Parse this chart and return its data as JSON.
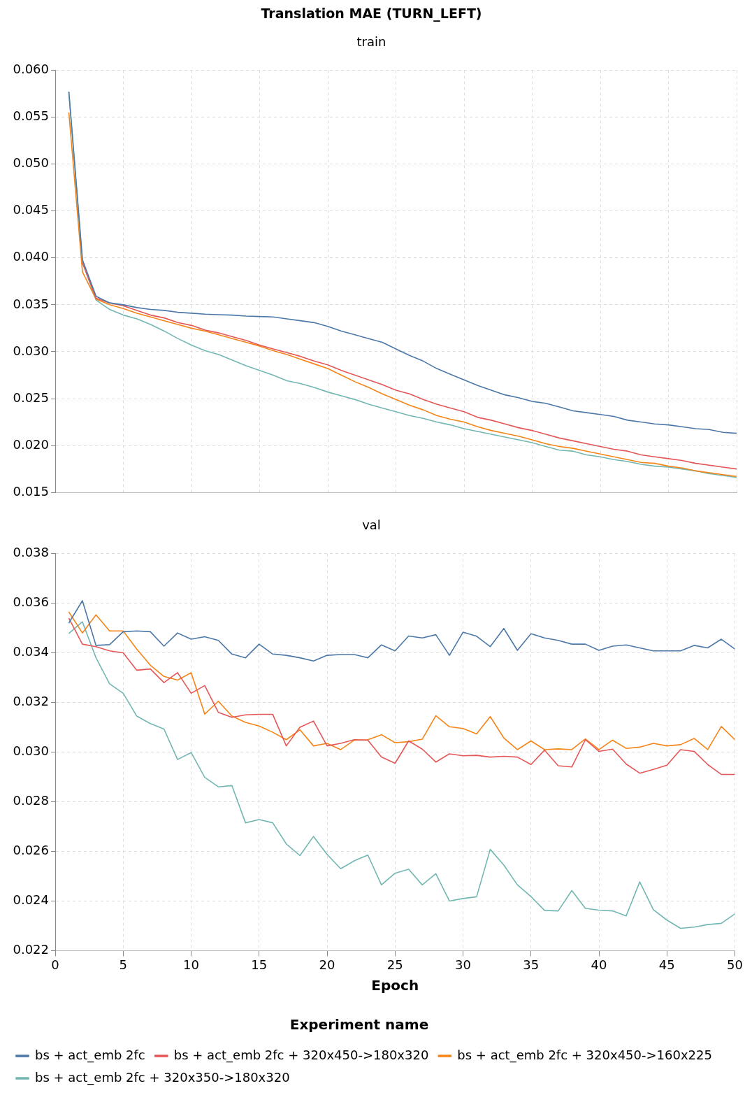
{
  "chart_data": [
    {
      "type": "line",
      "title": "Translation MAE (TURN_LEFT)",
      "subtitle": "train",
      "x": [
        1,
        2,
        3,
        4,
        5,
        6,
        7,
        8,
        9,
        10,
        11,
        12,
        13,
        14,
        15,
        16,
        17,
        18,
        19,
        20,
        21,
        22,
        23,
        24,
        25,
        26,
        27,
        28,
        29,
        30,
        31,
        32,
        33,
        34,
        35,
        36,
        37,
        38,
        39,
        40,
        41,
        42,
        43,
        44,
        45,
        46,
        47,
        48,
        49,
        50
      ],
      "series": [
        {
          "color": "#4c78a8",
          "values": [
            0.0577,
            0.0398,
            0.0359,
            0.0352,
            0.035,
            0.0347,
            0.0345,
            0.0344,
            0.0342,
            0.0341,
            0.034,
            0.03395,
            0.0339,
            0.0338,
            0.03375,
            0.0337,
            0.0335,
            0.0333,
            0.0331,
            0.0327,
            0.0322,
            0.0318,
            0.0314,
            0.031,
            0.0303,
            0.0296,
            0.029,
            0.0282,
            0.0276,
            0.027,
            0.0264,
            0.0259,
            0.0254,
            0.0251,
            0.0247,
            0.0245,
            0.0241,
            0.0237,
            0.0235,
            0.0233,
            0.0231,
            0.0227,
            0.0225,
            0.0223,
            0.0222,
            0.022,
            0.0218,
            0.0217,
            0.0214,
            0.0213
          ]
        },
        {
          "color": "#e45756",
          "values": [
            null,
            0.0395,
            0.0357,
            0.0352,
            0.0349,
            0.0344,
            0.0339,
            0.0336,
            0.0331,
            0.0328,
            0.0323,
            0.032,
            0.0316,
            0.0312,
            0.0307,
            0.0303,
            0.0299,
            0.0295,
            0.029,
            0.0286,
            0.028,
            0.0275,
            0.027,
            0.0265,
            0.0259,
            0.0255,
            0.0249,
            0.0244,
            0.024,
            0.0236,
            0.023,
            0.0227,
            0.0223,
            0.0219,
            0.0216,
            0.0212,
            0.0208,
            0.0205,
            0.0202,
            0.0199,
            0.0196,
            0.0194,
            0.019,
            0.0188,
            0.0186,
            0.0184,
            0.0181,
            0.0179,
            0.0177,
            0.0175
          ]
        },
        {
          "color": "#f58518",
          "values": [
            0.0555,
            0.0385,
            0.0356,
            0.035,
            0.0346,
            0.0341,
            0.0337,
            0.0333,
            0.0329,
            0.0325,
            0.0322,
            0.0318,
            0.0314,
            0.031,
            0.0306,
            0.0301,
            0.0297,
            0.0292,
            0.0287,
            0.0282,
            0.0275,
            0.0268,
            0.0262,
            0.0255,
            0.0249,
            0.0243,
            0.0238,
            0.0232,
            0.0228,
            0.0225,
            0.022,
            0.0216,
            0.0213,
            0.021,
            0.0206,
            0.0202,
            0.0199,
            0.0197,
            0.0194,
            0.0191,
            0.0188,
            0.0185,
            0.0182,
            0.0181,
            0.0178,
            0.0176,
            0.0173,
            0.0171,
            0.0169,
            0.0167
          ]
        },
        {
          "color": "#72b7b2",
          "values": [
            0.0577,
            0.0395,
            0.0355,
            0.0345,
            0.0339,
            0.0335,
            0.0329,
            0.0322,
            0.0314,
            0.0307,
            0.0301,
            0.0297,
            0.0291,
            0.0285,
            0.028,
            0.0275,
            0.0269,
            0.0266,
            0.0262,
            0.0257,
            0.0253,
            0.0249,
            0.0244,
            0.024,
            0.0236,
            0.0232,
            0.0229,
            0.0225,
            0.0222,
            0.0218,
            0.0215,
            0.0212,
            0.0209,
            0.0206,
            0.0203,
            0.0199,
            0.0195,
            0.0194,
            0.019,
            0.0188,
            0.0185,
            0.0183,
            0.018,
            0.0178,
            0.0177,
            0.0175,
            0.0173,
            0.017,
            0.0168,
            0.0166
          ]
        }
      ],
      "xlim": [
        0,
        50
      ],
      "xticks": [
        0,
        5,
        10,
        15,
        20,
        25,
        30,
        35,
        40,
        45,
        50
      ],
      "ylim": [
        0.015,
        0.06
      ],
      "yticks": [
        {
          "value": 0.015,
          "label": "0.015"
        },
        {
          "value": 0.02,
          "label": "0.020"
        },
        {
          "value": 0.025,
          "label": "0.025"
        },
        {
          "value": 0.03,
          "label": "0.030"
        },
        {
          "value": 0.035,
          "label": "0.035"
        },
        {
          "value": 0.04,
          "label": "0.040"
        },
        {
          "value": 0.045,
          "label": "0.045"
        },
        {
          "value": 0.05,
          "label": "0.050"
        },
        {
          "value": 0.055,
          "label": "0.055"
        },
        {
          "value": 0.06,
          "label": "0.060"
        }
      ],
      "tick_labels": "y",
      "grid": true,
      "marker": "none",
      "line_style": "solid"
    },
    {
      "type": "line",
      "subtitle": "val",
      "xlabel": "Epoch",
      "legend_title": "Experiment name",
      "legend": "bottom",
      "x": [
        1,
        2,
        3,
        4,
        5,
        6,
        7,
        8,
        9,
        10,
        11,
        12,
        13,
        14,
        15,
        16,
        17,
        18,
        19,
        20,
        21,
        22,
        23,
        24,
        25,
        26,
        27,
        28,
        29,
        30,
        31,
        32,
        33,
        34,
        35,
        36,
        37,
        38,
        39,
        40,
        41,
        42,
        43,
        44,
        45,
        46,
        47,
        48,
        49,
        50
      ],
      "series": [
        {
          "name": "bs + act_emb 2fc",
          "color": "#4c78a8",
          "values": [
            0.0352,
            0.0361,
            0.0343,
            0.03433,
            0.03485,
            0.03488,
            0.03485,
            0.03427,
            0.0348,
            0.03455,
            0.03465,
            0.0345,
            0.03395,
            0.0338,
            0.03435,
            0.03395,
            0.0339,
            0.0338,
            0.03367,
            0.0339,
            0.03393,
            0.03393,
            0.0338,
            0.03432,
            0.03408,
            0.03468,
            0.0346,
            0.03473,
            0.0339,
            0.03483,
            0.03467,
            0.03425,
            0.03498,
            0.0341,
            0.03477,
            0.0346,
            0.0345,
            0.03435,
            0.03435,
            0.0341,
            0.03427,
            0.03432,
            0.0342,
            0.03408,
            0.03408,
            0.03408,
            0.0343,
            0.0342,
            0.03455,
            0.03415
          ]
        },
        {
          "name": "bs + act_emb 2fc + 320x450->180x320",
          "color": "#e45756",
          "values": [
            0.0354,
            0.03435,
            0.03425,
            0.03408,
            0.034,
            0.0333,
            0.03335,
            0.0328,
            0.0332,
            0.03237,
            0.03268,
            0.0316,
            0.0314,
            0.0315,
            0.03152,
            0.03152,
            0.03025,
            0.031,
            0.03125,
            0.03025,
            0.03035,
            0.0305,
            0.03048,
            0.0298,
            0.02955,
            0.03045,
            0.03012,
            0.0296,
            0.02993,
            0.02985,
            0.02987,
            0.0298,
            0.02983,
            0.0298,
            0.0295,
            0.03008,
            0.02945,
            0.0294,
            0.0305,
            0.03003,
            0.03012,
            0.02952,
            0.02915,
            0.0293,
            0.02947,
            0.0301,
            0.03003,
            0.0295,
            0.0291,
            0.0291
          ]
        },
        {
          "name": "bs + act_emb 2fc + 320x450->160x225",
          "color": "#f58518",
          "values": [
            0.03565,
            0.0348,
            0.03553,
            0.03488,
            0.03488,
            0.03415,
            0.0335,
            0.03305,
            0.0329,
            0.0332,
            0.03153,
            0.03205,
            0.03145,
            0.0312,
            0.03105,
            0.0308,
            0.0305,
            0.0309,
            0.03025,
            0.03035,
            0.0301,
            0.03048,
            0.0305,
            0.0307,
            0.03038,
            0.03042,
            0.03052,
            0.03147,
            0.03102,
            0.03095,
            0.03073,
            0.03143,
            0.03057,
            0.0301,
            0.03045,
            0.0301,
            0.03013,
            0.0301,
            0.03053,
            0.0301,
            0.03048,
            0.03015,
            0.0302,
            0.03035,
            0.03025,
            0.0303,
            0.03055,
            0.0301,
            0.03103,
            0.0305
          ]
        },
        {
          "name": "bs + act_emb 2fc + 320x350->180x320",
          "color": "#72b7b2",
          "values": [
            0.03478,
            0.03525,
            0.0338,
            0.03275,
            0.03237,
            0.03145,
            0.03115,
            0.03093,
            0.0297,
            0.02998,
            0.02898,
            0.0286,
            0.02865,
            0.02715,
            0.02728,
            0.02715,
            0.0263,
            0.02583,
            0.0266,
            0.02588,
            0.0253,
            0.02562,
            0.02585,
            0.02465,
            0.02512,
            0.02528,
            0.02465,
            0.0251,
            0.024,
            0.0241,
            0.02417,
            0.02608,
            0.02545,
            0.02465,
            0.02418,
            0.02362,
            0.0236,
            0.02442,
            0.0237,
            0.02363,
            0.0236,
            0.0234,
            0.02477,
            0.02365,
            0.02323,
            0.0229,
            0.02295,
            0.02305,
            0.0231,
            0.02348
          ]
        }
      ],
      "xlim": [
        0,
        50
      ],
      "xticks": [
        0,
        5,
        10,
        15,
        20,
        25,
        30,
        35,
        40,
        45,
        50
      ],
      "ylim": [
        0.022,
        0.038
      ],
      "yticks": [
        {
          "value": 0.022,
          "label": "0.022"
        },
        {
          "value": 0.024,
          "label": "0.024"
        },
        {
          "value": 0.026,
          "label": "0.026"
        },
        {
          "value": 0.028,
          "label": "0.028"
        },
        {
          "value": 0.03,
          "label": "0.030"
        },
        {
          "value": 0.032,
          "label": "0.032"
        },
        {
          "value": 0.034,
          "label": "0.034"
        },
        {
          "value": 0.036,
          "label": "0.036"
        },
        {
          "value": 0.038,
          "label": "0.038"
        }
      ],
      "grid": true,
      "marker": "none",
      "line_style": "solid"
    }
  ]
}
